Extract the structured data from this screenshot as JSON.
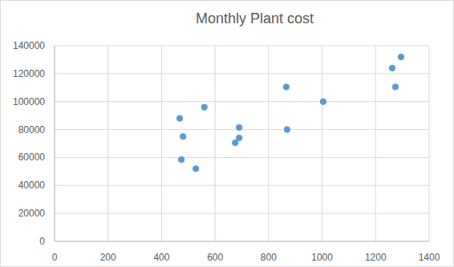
{
  "chart_data": {
    "type": "scatter",
    "title": "Monthly Plant cost",
    "x": [
      468,
      480,
      474,
      528,
      560,
      675,
      690,
      690,
      866,
      869,
      1004,
      1262,
      1295,
      1274
    ],
    "values": [
      88000,
      75000,
      58500,
      52000,
      96000,
      70500,
      81500,
      74000,
      110500,
      80000,
      100000,
      124000,
      132000,
      110500
    ],
    "color": "#5b9bd5",
    "marker": "circle",
    "xlim": [
      0,
      1400
    ],
    "xticks": [
      0,
      200,
      400,
      600,
      800,
      1000,
      1200,
      1400
    ],
    "ylim": [
      0,
      140000
    ],
    "yticks": [
      0,
      20000,
      40000,
      60000,
      80000,
      100000,
      120000,
      140000
    ],
    "grid": true
  }
}
